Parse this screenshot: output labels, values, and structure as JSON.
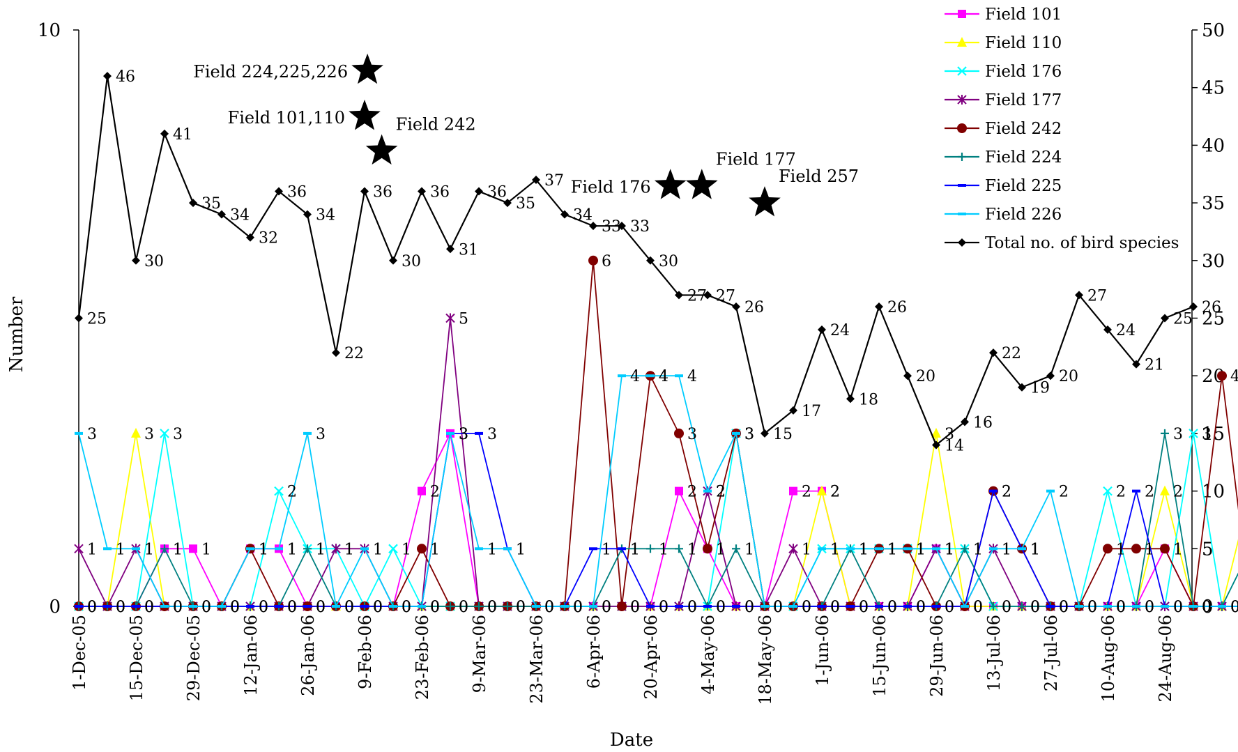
{
  "chart_data": {
    "type": "line",
    "xlabel": "Date",
    "ylabel": "Number",
    "y_left_range": [
      0,
      10
    ],
    "y_left_ticks": [
      "0",
      "10"
    ],
    "y_right_range": [
      0,
      50
    ],
    "y_right_ticks": [
      "0",
      "5",
      "10",
      "15",
      "20",
      "25",
      "30",
      "35",
      "40",
      "45",
      "50"
    ],
    "x_tick_labels": [
      "1-Dec-05",
      "15-Dec-05",
      "29-Dec-05",
      "12-Jan-06",
      "26-Jan-06",
      "9-Feb-06",
      "23-Feb-06",
      "9-Mar-06",
      "23-Mar-06",
      "6-Apr-06",
      "20-Apr-06",
      "4-May-06",
      "18-May-06",
      "1-Jun-06",
      "15-Jun-06",
      "29-Jun-06",
      "13-Jul-06",
      "27-Jul-06",
      "10-Aug-06",
      "24-Aug-06"
    ],
    "legend_position": "top-right",
    "series": [
      {
        "name": "Field 101",
        "axis": "left",
        "color": "#ff00ff",
        "marker": "square",
        "values": [
          0,
          0,
          0,
          1,
          1,
          0,
          1,
          1,
          0,
          0,
          0,
          0,
          2,
          3,
          0,
          0,
          0,
          0,
          0,
          0,
          0,
          2,
          1,
          0,
          0,
          2,
          2,
          0,
          0,
          0,
          1,
          0,
          0,
          0,
          0,
          0,
          0,
          0,
          1,
          0,
          0,
          0,
          0,
          0,
          0
        ]
      },
      {
        "name": "Field 110",
        "axis": "left",
        "color": "#ffff00",
        "marker": "triangle",
        "values": [
          0,
          0,
          3,
          0,
          0,
          0,
          0,
          0,
          0,
          0,
          0,
          0,
          0,
          0,
          0,
          0,
          0,
          0,
          0,
          0,
          0,
          0,
          0,
          0,
          0,
          0,
          2,
          0,
          0,
          0,
          3,
          0,
          0,
          0,
          0,
          0,
          0,
          0,
          2,
          0,
          0,
          2,
          1,
          0,
          0
        ]
      },
      {
        "name": "Field 176",
        "axis": "left",
        "color": "#00ffff",
        "marker": "x",
        "values": [
          0,
          0,
          0,
          3,
          0,
          0,
          0,
          2,
          1,
          1,
          0,
          1,
          0,
          0,
          0,
          0,
          0,
          0,
          0,
          0,
          0,
          0,
          0,
          3,
          0,
          0,
          1,
          1,
          1,
          1,
          1,
          1,
          0,
          0,
          0,
          0,
          2,
          0,
          0,
          3,
          0,
          1,
          0,
          0,
          0
        ]
      },
      {
        "name": "Field 177",
        "axis": "left",
        "color": "#800080",
        "marker": "asterisk",
        "values": [
          1,
          0,
          1,
          0,
          0,
          0,
          0,
          0,
          0,
          1,
          1,
          0,
          0,
          5,
          0,
          0,
          0,
          0,
          0,
          0,
          0,
          0,
          2,
          0,
          0,
          1,
          0,
          0,
          0,
          0,
          1,
          0,
          1,
          0,
          0,
          0,
          0,
          0,
          0,
          0,
          0,
          0,
          0,
          0,
          0
        ]
      },
      {
        "name": "Field 242",
        "axis": "left",
        "color": "#800000",
        "marker": "circle",
        "values": [
          0,
          0,
          0,
          0,
          0,
          0,
          1,
          0,
          0,
          0,
          0,
          0,
          1,
          0,
          0,
          0,
          0,
          0,
          6,
          0,
          4,
          3,
          1,
          3,
          0,
          0,
          0,
          0,
          1,
          1,
          0,
          0,
          2,
          1,
          0,
          0,
          1,
          1,
          1,
          0,
          4,
          0,
          4,
          3,
          3
        ]
      },
      {
        "name": "Field 224",
        "axis": "left",
        "color": "#008080",
        "marker": "plus",
        "values": [
          0,
          0,
          0,
          1,
          0,
          0,
          0,
          0,
          1,
          0,
          0,
          0,
          0,
          0,
          0,
          0,
          0,
          0,
          0,
          1,
          1,
          1,
          0,
          1,
          0,
          0,
          0,
          1,
          0,
          0,
          0,
          1,
          0,
          0,
          0,
          0,
          0,
          0,
          3,
          0,
          0,
          1,
          0,
          1,
          0
        ]
      },
      {
        "name": "Field 225",
        "axis": "left",
        "color": "#0000ff",
        "marker": "dash",
        "values": [
          0,
          0,
          0,
          0,
          0,
          0,
          0,
          0,
          0,
          0,
          0,
          0,
          0,
          3,
          3,
          1,
          0,
          0,
          1,
          1,
          0,
          0,
          0,
          0,
          0,
          0,
          0,
          0,
          0,
          0,
          0,
          0,
          2,
          1,
          0,
          0,
          0,
          2,
          0,
          0,
          0,
          0,
          0,
          3,
          0
        ]
      },
      {
        "name": "Field 226",
        "axis": "left",
        "color": "#00ccff",
        "marker": "dash",
        "values": [
          3,
          1,
          1,
          0,
          0,
          0,
          1,
          1,
          3,
          0,
          1,
          0,
          0,
          3,
          1,
          1,
          0,
          0,
          0,
          4,
          4,
          4,
          2,
          3,
          0,
          0,
          1,
          1,
          1,
          1,
          1,
          0,
          1,
          1,
          2,
          0,
          0,
          0,
          0,
          0,
          0,
          0,
          0,
          0,
          0
        ]
      },
      {
        "name": "Total no. of bird species",
        "axis": "right",
        "color": "#000000",
        "marker": "diamond",
        "values": [
          25,
          46,
          30,
          41,
          35,
          34,
          32,
          36,
          34,
          22,
          36,
          30,
          36,
          31,
          36,
          35,
          37,
          34,
          33,
          33,
          30,
          27,
          27,
          26,
          15,
          17,
          24,
          18,
          26,
          20,
          14,
          16,
          22,
          19,
          20,
          27,
          24,
          21,
          25,
          26
        ]
      }
    ],
    "annotations": [
      {
        "text": "Field 224,225,226",
        "x_index": 10.1,
        "y_right": 46.5
      },
      {
        "text": "Field 101,110",
        "x_index": 10.0,
        "y_right": 42.5
      },
      {
        "text": "Field 242",
        "x_index": 10.6,
        "y_right": 39.5
      },
      {
        "text": "Field 176",
        "x_index": 20.7,
        "y_right": 36.5
      },
      {
        "text": "Field 177",
        "x_index": 21.8,
        "y_right": 36.5
      },
      {
        "text": "Field 257",
        "x_index": 24.0,
        "y_right": 35.0
      }
    ]
  }
}
